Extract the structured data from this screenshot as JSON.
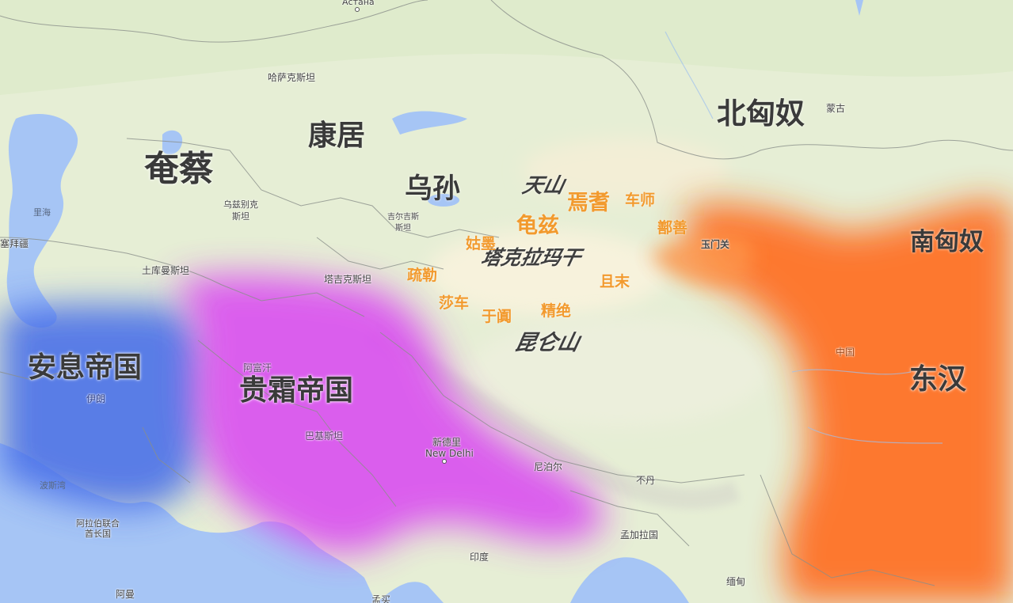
{
  "colors": {
    "anxi": "#4a6fe8",
    "guishuang": "#d94ef0",
    "donghan": "#ff6a1a",
    "water": "#a6c5f5",
    "land": "#e7efd6",
    "desert": "#f6f1da",
    "state_label": "#f29a2e"
  },
  "regions": [
    {
      "id": "yancai",
      "text": "奄蔡"
    },
    {
      "id": "kangju",
      "text": "康居"
    },
    {
      "id": "wusun",
      "text": "乌孙"
    },
    {
      "id": "beixiongnu",
      "text": "北匈奴"
    },
    {
      "id": "nanxiongnu",
      "text": "南匈奴"
    },
    {
      "id": "anxi",
      "text": "安息帝国"
    },
    {
      "id": "guishuang",
      "text": "贵霜帝国"
    },
    {
      "id": "donghan",
      "text": "东汉"
    }
  ],
  "geo_features": [
    {
      "id": "tianshan",
      "text": "天山"
    },
    {
      "id": "taklamakan",
      "text": "塔克拉玛干"
    },
    {
      "id": "kunlun",
      "text": "昆仑山"
    }
  ],
  "city_states": [
    {
      "id": "yanqi",
      "text": "焉耆"
    },
    {
      "id": "cheshi",
      "text": "车师"
    },
    {
      "id": "qiuci",
      "text": "龟兹"
    },
    {
      "id": "shanshan",
      "text": "鄯善"
    },
    {
      "id": "gumo",
      "text": "姑墨"
    },
    {
      "id": "shule",
      "text": "疏勒"
    },
    {
      "id": "qiemo",
      "text": "且末"
    },
    {
      "id": "suoche",
      "text": "莎车"
    },
    {
      "id": "yutian",
      "text": "于阗"
    },
    {
      "id": "jingjue",
      "text": "精绝"
    }
  ],
  "base_labels": [
    {
      "id": "astana",
      "text": "Астана"
    },
    {
      "id": "kazakhstan",
      "text": "哈萨克斯坦"
    },
    {
      "id": "mongolia",
      "text": "蒙古"
    },
    {
      "id": "uzbekistan",
      "text": "乌兹别克\n斯坦"
    },
    {
      "id": "kyrgyzstan",
      "text": "吉尔吉斯\n斯坦"
    },
    {
      "id": "caspian",
      "text": "里海"
    },
    {
      "id": "azerbaijan",
      "text": "塞拜疆"
    },
    {
      "id": "turkmenistan",
      "text": "土库曼斯坦"
    },
    {
      "id": "tajikistan",
      "text": "塔吉克斯坦"
    },
    {
      "id": "yumenguan",
      "text": "玉门关"
    },
    {
      "id": "afghanistan",
      "text": "阿富汗"
    },
    {
      "id": "iran",
      "text": "伊朗"
    },
    {
      "id": "china",
      "text": "中国"
    },
    {
      "id": "pakistan",
      "text": "巴基斯坦"
    },
    {
      "id": "newdelhi_zh",
      "text": "新德里"
    },
    {
      "id": "newdelhi_en",
      "text": "New Delhi"
    },
    {
      "id": "nepal",
      "text": "尼泊尔"
    },
    {
      "id": "bhutan",
      "text": "不丹"
    },
    {
      "id": "persian_gulf",
      "text": "波斯湾"
    },
    {
      "id": "uae",
      "text": "阿拉伯联合\n酋长国"
    },
    {
      "id": "bangladesh",
      "text": "孟加拉国"
    },
    {
      "id": "india",
      "text": "印度"
    },
    {
      "id": "oman",
      "text": "阿曼"
    },
    {
      "id": "myanmar",
      "text": "缅甸"
    },
    {
      "id": "bottom_partial",
      "text": "孟买"
    }
  ]
}
